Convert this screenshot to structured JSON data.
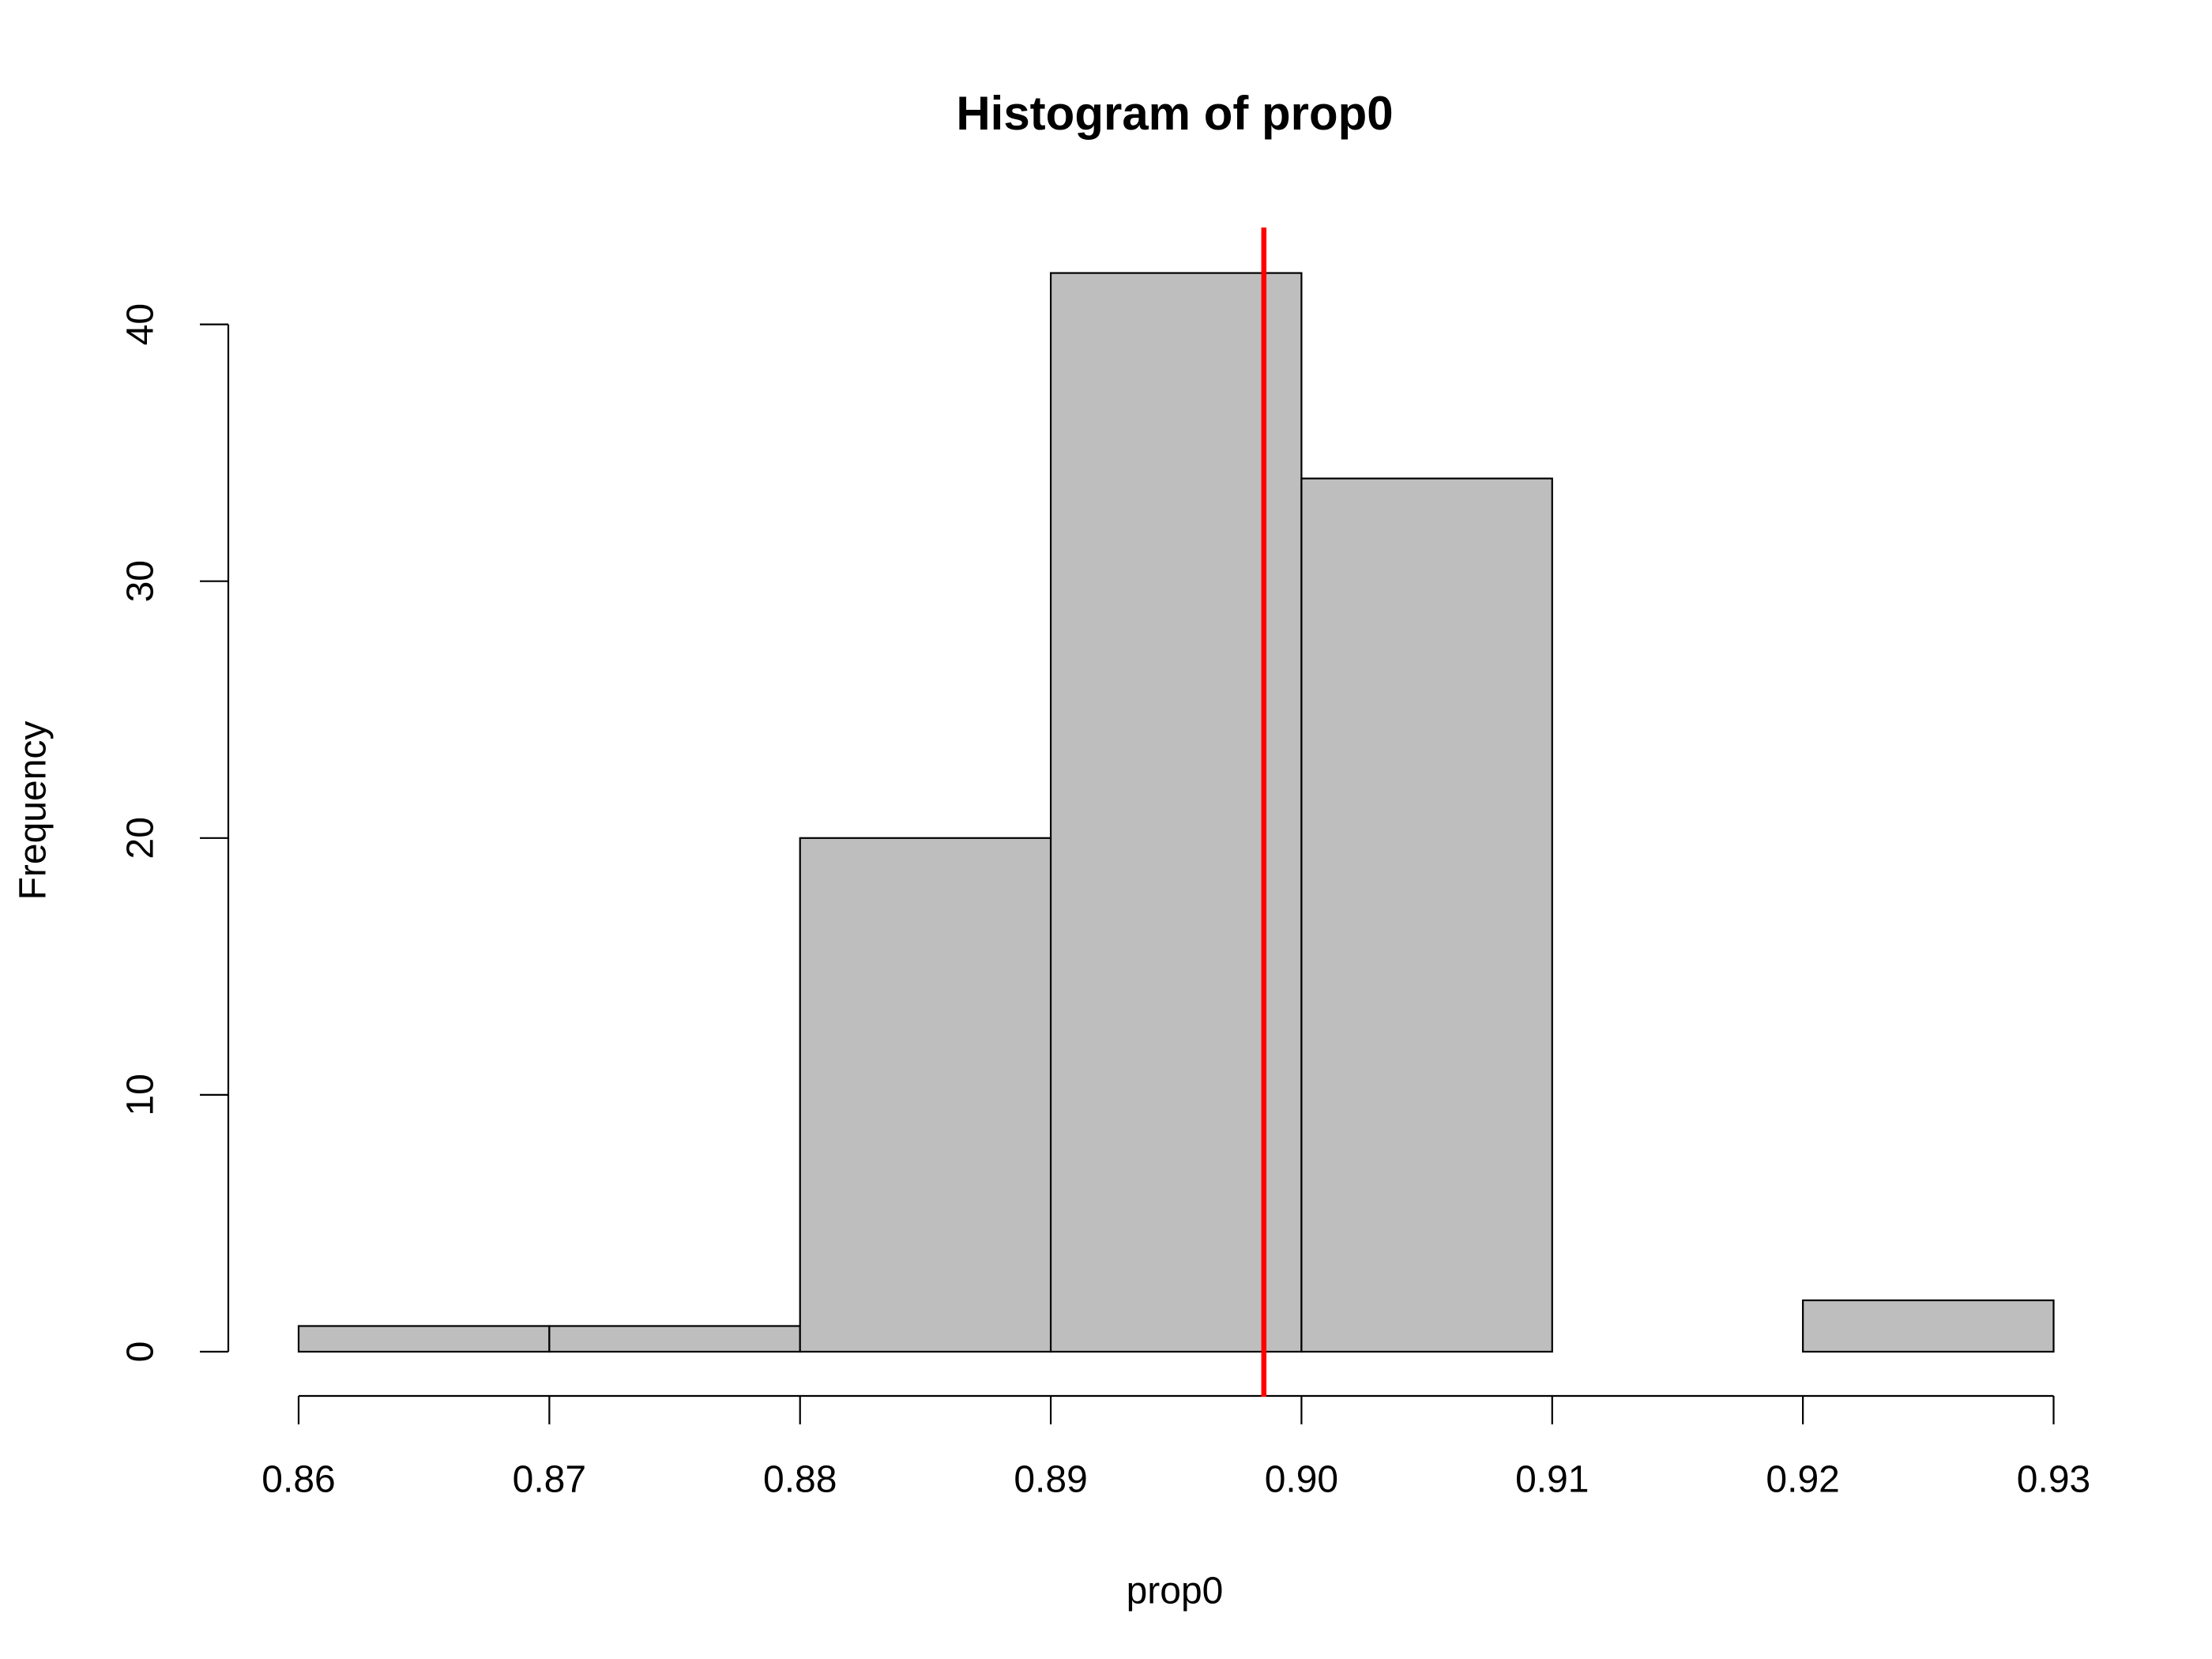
{
  "chart_data": {
    "type": "histogram",
    "title": "Histogram of prop0",
    "x_label": "prop0",
    "y_label": "Frequency",
    "bins": [
      0.86,
      0.87,
      0.88,
      0.89,
      0.9,
      0.91,
      0.92,
      0.93
    ],
    "values": [
      1,
      1,
      20,
      42,
      34,
      0,
      2
    ],
    "color": "#bebebe",
    "xlim": [
      0.86,
      0.93
    ],
    "xticks": [
      0.86,
      0.87,
      0.88,
      0.89,
      {
        "value": 0.9,
        "label": "0.90"
      },
      0.91,
      0.92,
      0.93
    ],
    "ylim": [
      0,
      40
    ],
    "yticks": [
      0,
      10,
      20,
      30,
      40
    ],
    "reference_line": {
      "x": 0.8985,
      "color": "#ff0000"
    }
  }
}
